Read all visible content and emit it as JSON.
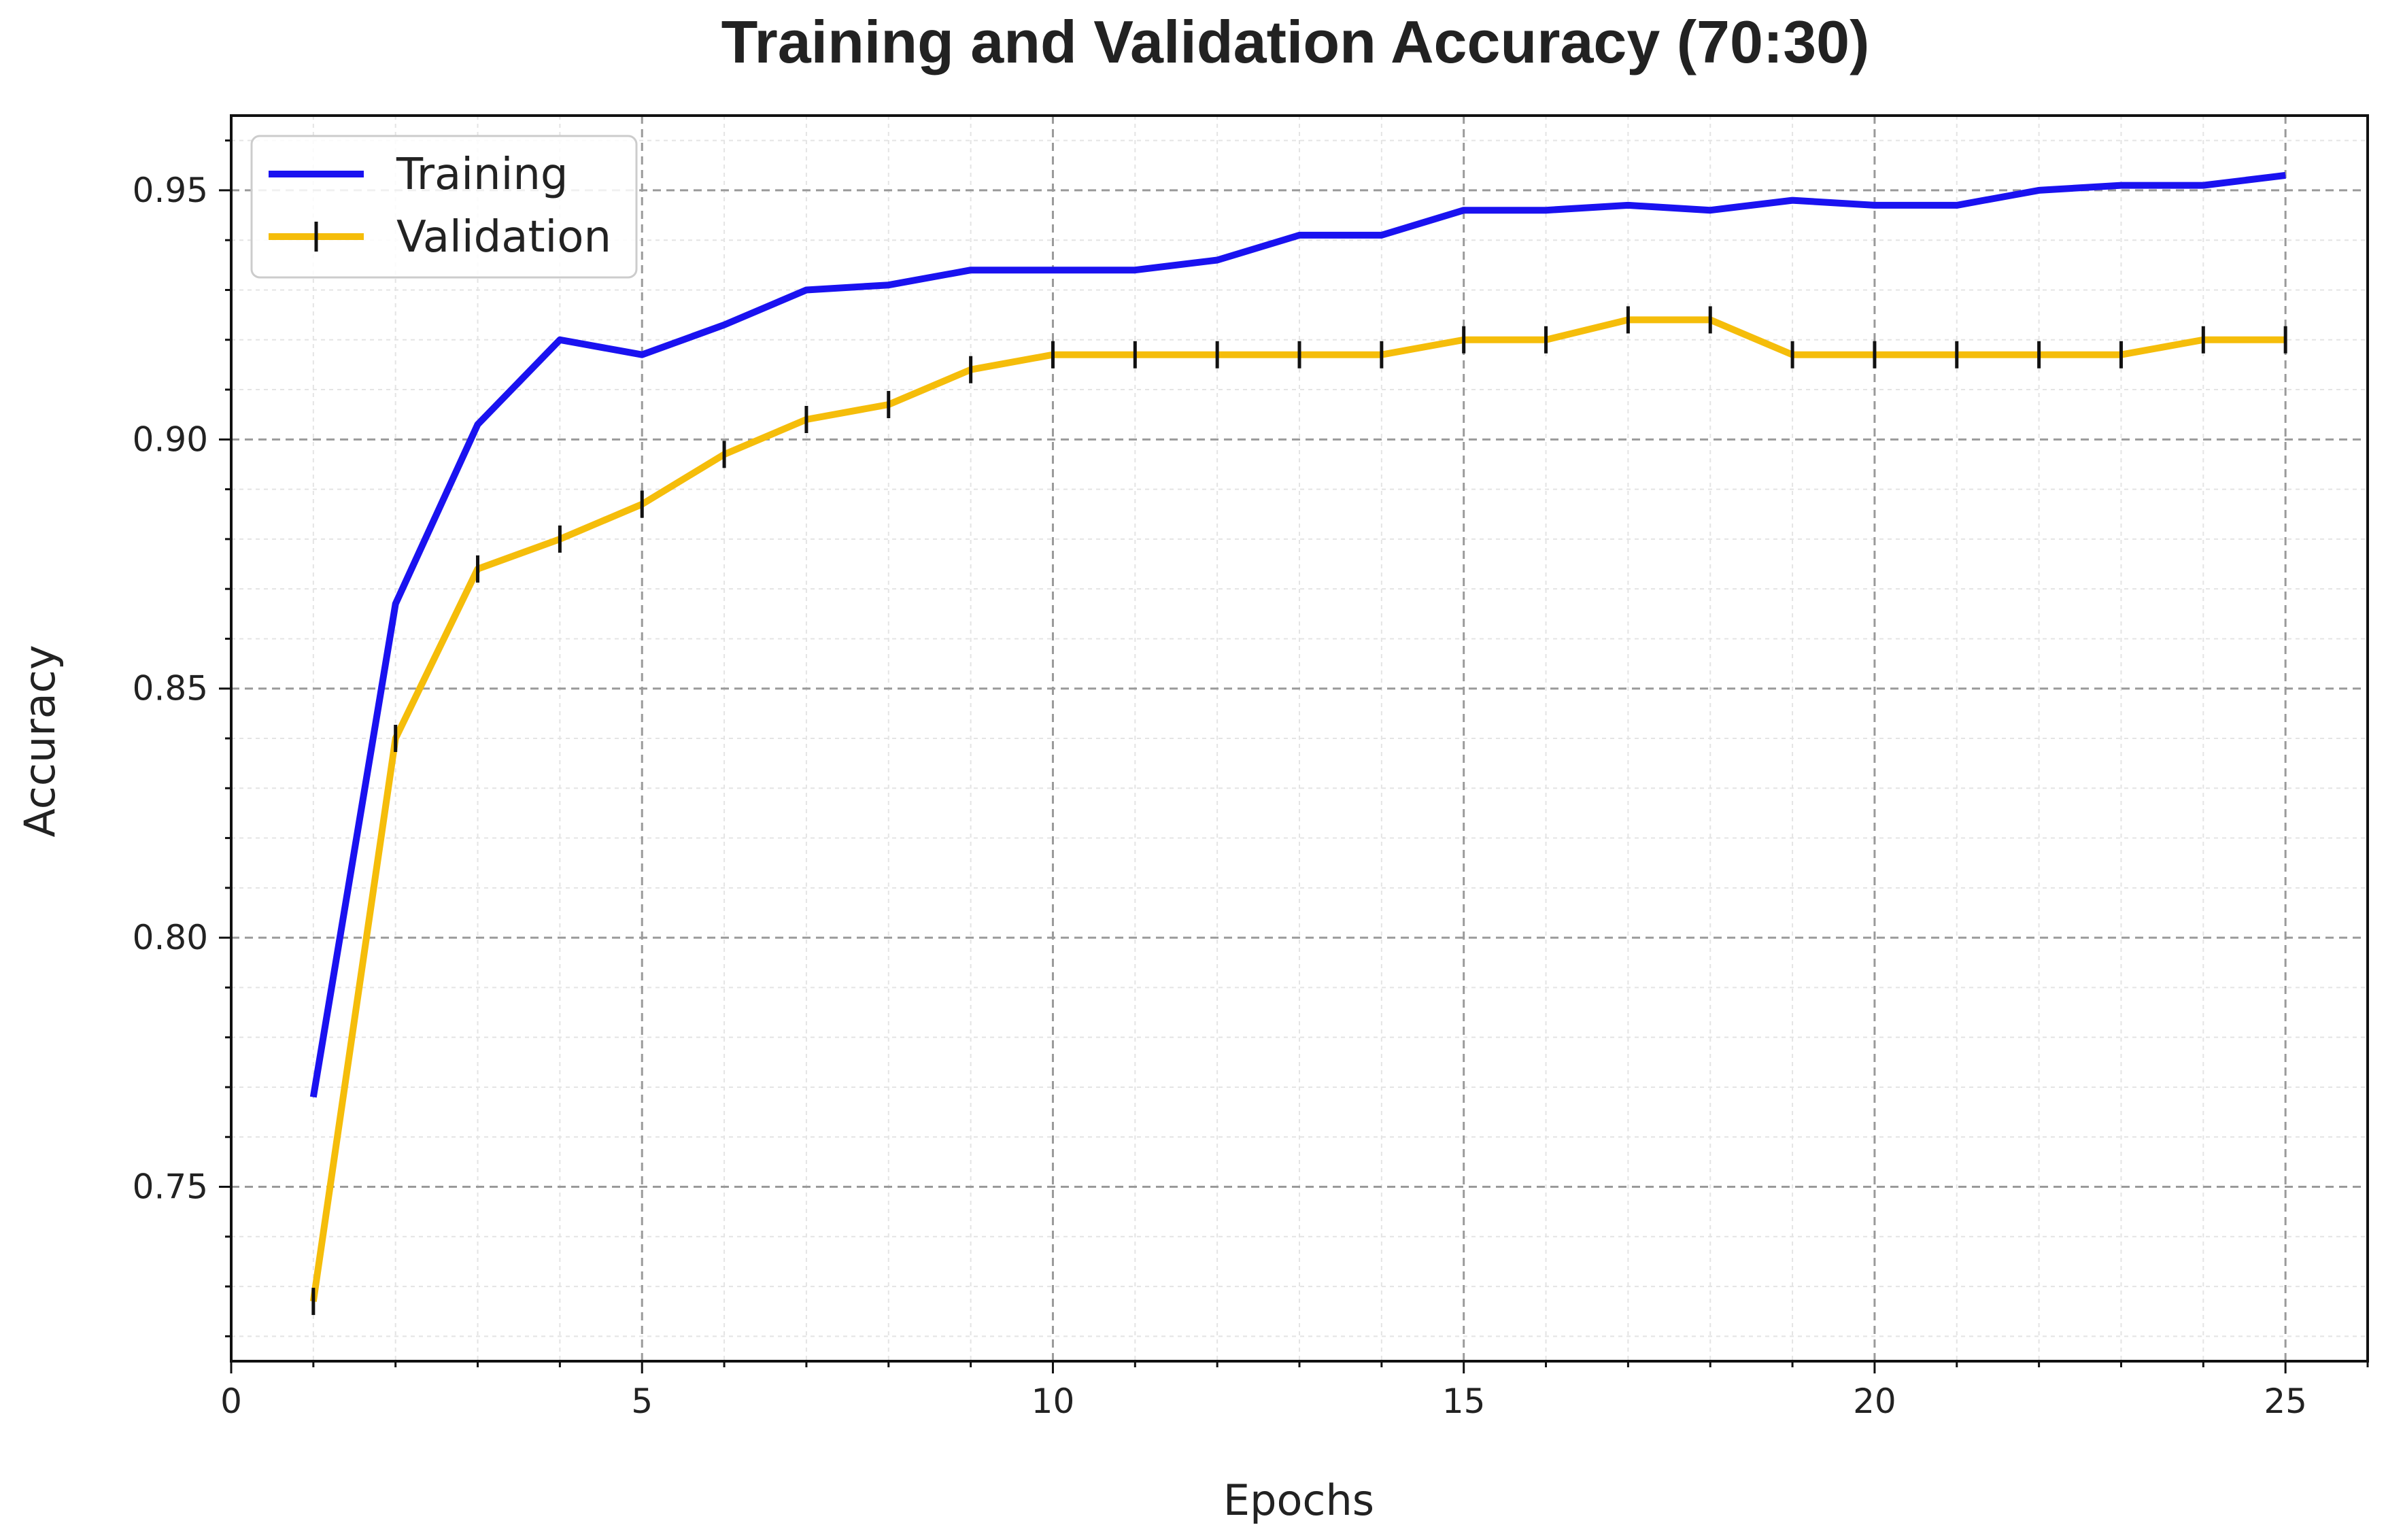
{
  "chart_data": {
    "type": "line",
    "title": "Training and Validation Accuracy (70:30)",
    "xlabel": "Epochs",
    "ylabel": "Accuracy",
    "xlim": [
      0,
      26
    ],
    "ylim": [
      0.715,
      0.965
    ],
    "xticks": [
      0,
      5,
      10,
      15,
      20,
      25
    ],
    "xtick_labels": [
      "0",
      "5",
      "10",
      "15",
      "20",
      "25"
    ],
    "yticks": [
      0.75,
      0.8,
      0.85,
      0.9,
      0.95
    ],
    "ytick_labels": [
      "0.75",
      "0.80",
      "0.85",
      "0.90",
      "0.95"
    ],
    "grid": true,
    "legend_position": "top-left",
    "x": [
      1,
      2,
      3,
      4,
      5,
      6,
      7,
      8,
      9,
      10,
      11,
      12,
      13,
      14,
      15,
      16,
      17,
      18,
      19,
      20,
      21,
      22,
      23,
      24,
      25
    ],
    "series": [
      {
        "name": "Training",
        "color": "#1a12f0",
        "marker": "none",
        "values": [
          0.768,
          0.867,
          0.903,
          0.92,
          0.917,
          0.923,
          0.93,
          0.931,
          0.934,
          0.934,
          0.934,
          0.936,
          0.941,
          0.941,
          0.946,
          0.946,
          0.947,
          0.946,
          0.948,
          0.947,
          0.947,
          0.95,
          0.951,
          0.951,
          0.953
        ]
      },
      {
        "name": "Validation",
        "color": "#f5bd0a",
        "marker": "vertical-line",
        "values": [
          0.727,
          0.84,
          0.874,
          0.88,
          0.887,
          0.897,
          0.904,
          0.907,
          0.914,
          0.917,
          0.917,
          0.917,
          0.917,
          0.917,
          0.92,
          0.92,
          0.924,
          0.924,
          0.917,
          0.917,
          0.917,
          0.917,
          0.917,
          0.92,
          0.92
        ]
      }
    ]
  }
}
